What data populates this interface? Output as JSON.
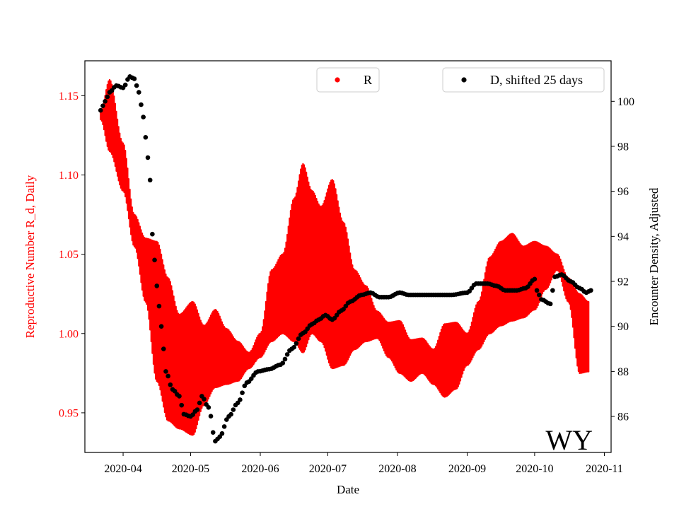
{
  "chart_data": {
    "type": "scatter",
    "state_label": "WY",
    "xlabel": "Date",
    "ylabel_left": "Reproductive Number R_d, Daily",
    "ylabel_right": "Encounter Density, Adjusted",
    "x_ticks": [
      "2020-04",
      "2020-05",
      "2020-06",
      "2020-07",
      "2020-08",
      "2020-09",
      "2020-10",
      "2020-11"
    ],
    "xlim": [
      "2020-03-15",
      "2020-11-04"
    ],
    "ylim_left": [
      0.925,
      1.172
    ],
    "ylim_right": [
      84.4,
      101.8
    ],
    "yticks_left": [
      0.95,
      1.0,
      1.05,
      1.1,
      1.15
    ],
    "yticks_right": [
      86,
      88,
      90,
      92,
      94,
      96,
      98,
      100
    ],
    "colors": {
      "R": "#ff0000",
      "D": "#000000",
      "left_axis_text": "#ff0000",
      "right_axis_text": "#000000"
    },
    "series": [
      {
        "name": "R",
        "label": "R",
        "axis": "left",
        "marker": "dot",
        "color": "#ff0000",
        "start_date": "2020-03-22",
        "end_date": "2020-10-25",
        "upper_knots": [
          [
            "2020-03-22",
            1.14
          ],
          [
            "2020-03-26",
            1.16
          ],
          [
            "2020-04-01",
            1.12
          ],
          [
            "2020-04-06",
            1.075
          ],
          [
            "2020-04-11",
            1.06
          ],
          [
            "2020-04-16",
            1.058
          ],
          [
            "2020-04-21",
            1.035
          ],
          [
            "2020-04-26",
            1.012
          ],
          [
            "2020-05-02",
            1.02
          ],
          [
            "2020-05-07",
            1.005
          ],
          [
            "2020-05-12",
            1.015
          ],
          [
            "2020-05-17",
            1.003
          ],
          [
            "2020-05-22",
            0.995
          ],
          [
            "2020-05-27",
            0.988
          ],
          [
            "2020-06-01",
            1.0
          ],
          [
            "2020-06-06",
            1.04
          ],
          [
            "2020-06-11",
            1.05
          ],
          [
            "2020-06-16",
            1.085
          ],
          [
            "2020-06-20",
            1.107
          ],
          [
            "2020-06-24",
            1.09
          ],
          [
            "2020-06-28",
            1.08
          ],
          [
            "2020-07-03",
            1.097
          ],
          [
            "2020-07-08",
            1.07
          ],
          [
            "2020-07-13",
            1.04
          ],
          [
            "2020-07-18",
            1.03
          ],
          [
            "2020-07-23",
            1.014
          ],
          [
            "2020-07-28",
            1.007
          ],
          [
            "2020-08-02",
            1.008
          ],
          [
            "2020-08-07",
            0.996
          ],
          [
            "2020-08-12",
            0.997
          ],
          [
            "2020-08-17",
            0.99
          ],
          [
            "2020-08-22",
            1.006
          ],
          [
            "2020-08-27",
            1.007
          ],
          [
            "2020-09-01",
            1.0
          ],
          [
            "2020-09-06",
            1.02
          ],
          [
            "2020-09-11",
            1.048
          ],
          [
            "2020-09-16",
            1.058
          ],
          [
            "2020-09-21",
            1.063
          ],
          [
            "2020-09-26",
            1.055
          ],
          [
            "2020-10-01",
            1.058
          ],
          [
            "2020-10-06",
            1.055
          ],
          [
            "2020-10-11",
            1.05
          ],
          [
            "2020-10-16",
            1.035
          ],
          [
            "2020-10-21",
            1.025
          ],
          [
            "2020-10-25",
            1.02
          ]
        ],
        "lower_knots": [
          [
            "2020-03-22",
            1.135
          ],
          [
            "2020-03-26",
            1.115
          ],
          [
            "2020-04-01",
            1.09
          ],
          [
            "2020-04-06",
            1.055
          ],
          [
            "2020-04-11",
            1.02
          ],
          [
            "2020-04-16",
            0.97
          ],
          [
            "2020-04-21",
            0.945
          ],
          [
            "2020-04-26",
            0.94
          ],
          [
            "2020-05-02",
            0.936
          ],
          [
            "2020-05-07",
            0.955
          ],
          [
            "2020-05-12",
            0.966
          ],
          [
            "2020-05-17",
            0.968
          ],
          [
            "2020-05-22",
            0.97
          ],
          [
            "2020-05-27",
            0.978
          ],
          [
            "2020-06-01",
            0.985
          ],
          [
            "2020-06-06",
            0.995
          ],
          [
            "2020-06-11",
            1.0
          ],
          [
            "2020-06-16",
            0.995
          ],
          [
            "2020-06-20",
            0.988
          ],
          [
            "2020-06-24",
            1.0
          ],
          [
            "2020-06-28",
            0.995
          ],
          [
            "2020-07-03",
            0.978
          ],
          [
            "2020-07-08",
            0.98
          ],
          [
            "2020-07-13",
            0.99
          ],
          [
            "2020-07-18",
            0.995
          ],
          [
            "2020-07-23",
            0.997
          ],
          [
            "2020-07-28",
            0.985
          ],
          [
            "2020-08-02",
            0.975
          ],
          [
            "2020-08-07",
            0.97
          ],
          [
            "2020-08-12",
            0.975
          ],
          [
            "2020-08-17",
            0.968
          ],
          [
            "2020-08-22",
            0.96
          ],
          [
            "2020-08-27",
            0.965
          ],
          [
            "2020-09-01",
            0.98
          ],
          [
            "2020-09-06",
            0.99
          ],
          [
            "2020-09-11",
            1.0
          ],
          [
            "2020-09-16",
            1.005
          ],
          [
            "2020-09-21",
            1.008
          ],
          [
            "2020-09-26",
            1.01
          ],
          [
            "2020-10-01",
            1.015
          ],
          [
            "2020-10-06",
            1.028
          ],
          [
            "2020-10-11",
            1.04
          ],
          [
            "2020-10-16",
            1.02
          ],
          [
            "2020-10-21",
            0.975
          ],
          [
            "2020-10-25",
            0.976
          ]
        ]
      },
      {
        "name": "D, shifted 25 days",
        "label": "D, shifted 25 days",
        "axis": "right",
        "marker": "dot",
        "color": "#000000",
        "knots": [
          [
            "2020-03-22",
            99.6
          ],
          [
            "2020-03-24",
            100.0
          ],
          [
            "2020-03-26",
            100.4
          ],
          [
            "2020-03-29",
            100.7
          ],
          [
            "2020-04-01",
            100.6
          ],
          [
            "2020-04-04",
            101.1
          ],
          [
            "2020-04-06",
            101.0
          ],
          [
            "2020-04-08",
            100.4
          ],
          [
            "2020-04-10",
            99.3
          ],
          [
            "2020-04-12",
            97.5
          ],
          [
            "2020-04-13",
            96.5
          ],
          [
            "2020-04-14",
            94.1
          ],
          [
            "2020-04-16",
            91.8
          ],
          [
            "2020-04-18",
            90.0
          ],
          [
            "2020-04-20",
            88.0
          ],
          [
            "2020-04-23",
            87.2
          ],
          [
            "2020-04-26",
            86.9
          ],
          [
            "2020-04-28",
            86.1
          ],
          [
            "2020-05-01",
            86.0
          ],
          [
            "2020-05-04",
            86.3
          ],
          [
            "2020-05-06",
            86.9
          ],
          [
            "2020-05-09",
            86.4
          ],
          [
            "2020-05-12",
            84.9
          ],
          [
            "2020-05-14",
            85.1
          ],
          [
            "2020-05-18",
            86.0
          ],
          [
            "2020-05-22",
            86.6
          ],
          [
            "2020-05-26",
            87.5
          ],
          [
            "2020-05-31",
            88.0
          ],
          [
            "2020-06-05",
            88.1
          ],
          [
            "2020-06-10",
            88.3
          ],
          [
            "2020-06-15",
            89.0
          ],
          [
            "2020-06-20",
            89.7
          ],
          [
            "2020-06-24",
            90.1
          ],
          [
            "2020-06-27",
            90.3
          ],
          [
            "2020-06-30",
            90.5
          ],
          [
            "2020-07-03",
            90.3
          ],
          [
            "2020-07-07",
            90.7
          ],
          [
            "2020-07-11",
            91.1
          ],
          [
            "2020-07-16",
            91.4
          ],
          [
            "2020-07-20",
            91.5
          ],
          [
            "2020-07-24",
            91.3
          ],
          [
            "2020-07-28",
            91.3
          ],
          [
            "2020-08-02",
            91.5
          ],
          [
            "2020-08-06",
            91.4
          ],
          [
            "2020-08-15",
            91.4
          ],
          [
            "2020-08-25",
            91.4
          ],
          [
            "2020-09-01",
            91.5
          ],
          [
            "2020-09-05",
            91.9
          ],
          [
            "2020-09-10",
            91.9
          ],
          [
            "2020-09-14",
            91.8
          ],
          [
            "2020-09-18",
            91.6
          ],
          [
            "2020-09-23",
            91.6
          ],
          [
            "2020-09-27",
            91.7
          ],
          [
            "2020-10-01",
            92.1
          ],
          [
            "2020-10-02",
            91.6
          ],
          [
            "2020-10-04",
            91.2
          ],
          [
            "2020-10-08",
            91.0
          ],
          [
            "2020-10-10",
            92.2
          ],
          [
            "2020-10-13",
            92.3
          ],
          [
            "2020-10-17",
            92.0
          ],
          [
            "2020-10-21",
            91.7
          ],
          [
            "2020-10-24",
            91.5
          ],
          [
            "2020-10-26",
            91.6
          ]
        ]
      }
    ],
    "legends": [
      {
        "series": "R",
        "position": "upper-center"
      },
      {
        "series": "D, shifted 25 days",
        "position": "upper-right"
      }
    ]
  }
}
